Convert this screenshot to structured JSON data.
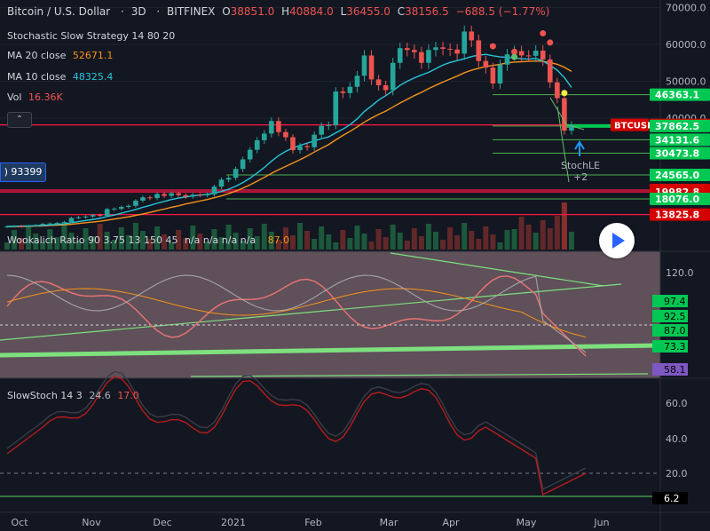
{
  "header": {
    "symbol": "Bitcoin / U.S. Dollar",
    "interval": "3D",
    "exchange": "BITFINEX",
    "o_label": "O",
    "o": "38851.0",
    "h_label": "H",
    "h": "40884.0",
    "l_label": "L",
    "l": "36455.0",
    "c_label": "C",
    "c": "38156.5",
    "change": "−688.5 (−1.77%)"
  },
  "legend": {
    "strategy": "Stochastic Slow Strategy 14 80 20",
    "ma20_label": "MA 20 close",
    "ma20_value": "52671.1",
    "ma10_label": "MA 10 close",
    "ma10_value": "48325.4",
    "vol_label": "Vol",
    "vol_value": "16.36K",
    "collapse_icon": "⌃"
  },
  "stoch_tag": ") 93399",
  "colors": {
    "up": "#26a69a",
    "down": "#ef5350",
    "ma20": "#f7931a",
    "ma10": "#26c6da",
    "green_line": "#4caf50",
    "red_line": "#ff1744",
    "bg": "#131722"
  },
  "wookalich": {
    "title": "Wookalich Ratio 90 3.75 13 150 45",
    "na": "n/a n/a n/a n/a",
    "value": "87.0"
  },
  "slowstoch": {
    "title": "SlowStoch 14 3",
    "k": "24.6",
    "d": "17.0"
  },
  "annotations": {
    "stochle": "StochLE",
    "plus2": "+2"
  },
  "chart_data": [
    {
      "type": "candlestick",
      "title": "Bitcoin / U.S. Dollar 3D BITFINEX",
      "x_labels": [
        "Oct",
        "Nov",
        "Dec",
        "2021",
        "Feb",
        "Mar",
        "Apr",
        "May",
        "Jun"
      ],
      "y_ticks": [
        40000,
        50000,
        60000,
        70000
      ],
      "y_tick_labels": [
        "40000.0",
        "50000.0",
        "60000.0",
        "70000.0"
      ],
      "close": [
        10600,
        10700,
        10550,
        10800,
        11000,
        11300,
        11400,
        11550,
        11800,
        12900,
        13100,
        13300,
        13700,
        13500,
        15300,
        15400,
        15900,
        16200,
        17600,
        18500,
        18300,
        19400,
        18900,
        19600,
        19100,
        18700,
        19200,
        19100,
        19300,
        21400,
        23300,
        23800,
        26200,
        28800,
        31400,
        34000,
        35800,
        39200,
        36200,
        34800,
        31300,
        32400,
        32100,
        35500,
        37900,
        38100,
        47200,
        46800,
        48500,
        51500,
        57000,
        50500,
        48900,
        47600,
        55000,
        59000,
        58500,
        57900,
        55000,
        58500,
        59200,
        58800,
        58600,
        57500,
        63500,
        61100,
        55500,
        53700,
        49400,
        54500,
        57300,
        58200,
        57000,
        56900,
        58300,
        55900,
        49700,
        45400,
        36600,
        38156.5
      ],
      "ma20": [
        10500,
        10550,
        10600,
        10650,
        10700,
        10750,
        10850,
        10950,
        11050,
        11200,
        11400,
        11600,
        11800,
        12000,
        12300,
        12600,
        12900,
        13200,
        13600,
        14000,
        14400,
        14900,
        15300,
        15800,
        16200,
        16700,
        17100,
        17500,
        17900,
        18400,
        18900,
        19500,
        20200,
        21000,
        21900,
        22900,
        23900,
        25000,
        26000,
        26900,
        27800,
        28700,
        29700,
        30800,
        31800,
        32800,
        34100,
        35300,
        36400,
        37600,
        38900,
        40000,
        41000,
        41900,
        43000,
        44100,
        45100,
        46100,
        47000,
        48000,
        48900,
        49800,
        50600,
        51400,
        52300,
        53000,
        53500,
        54000,
        54300,
        54600,
        55000,
        55200,
        55300,
        55400,
        55500,
        55400,
        55100,
        54600,
        53800,
        52671.1
      ],
      "ma10": [
        10600,
        10650,
        10700,
        10750,
        10800,
        10900,
        11000,
        11150,
        11300,
        11600,
        11900,
        12200,
        12500,
        12800,
        13300,
        13700,
        14200,
        14700,
        15200,
        15800,
        16300,
        16900,
        17400,
        17900,
        18300,
        18600,
        18900,
        19100,
        19300,
        19600,
        20100,
        20700,
        21500,
        22500,
        23700,
        25100,
        26600,
        28300,
        29800,
        31000,
        31900,
        32600,
        33200,
        33800,
        34400,
        34900,
        36000,
        37000,
        38200,
        39800,
        41800,
        43300,
        44900,
        46100,
        47400,
        48900,
        50000,
        50900,
        51700,
        52400,
        53400,
        54400,
        55100,
        55600,
        56100,
        56700,
        57100,
        57300,
        56900,
        56600,
        56500,
        56300,
        56100,
        56000,
        56200,
        55500,
        54300,
        53000,
        51000,
        48325.4
      ],
      "horizontal_levels": [
        {
          "value": 46363.1,
          "label": "46363.1",
          "color": "green"
        },
        {
          "value": 38156.5,
          "label": "38156.5",
          "color": "red",
          "tag": "BTCUSD"
        },
        {
          "value": 37862.5,
          "label": "37862.5",
          "color": "green"
        },
        {
          "value": 34131.6,
          "label": "34131.6",
          "color": "green"
        },
        {
          "value": 30473.8,
          "label": "30473.8",
          "color": "green"
        },
        {
          "value": 24565.0,
          "label": "24565.0",
          "color": "green"
        },
        {
          "value": 20488.7,
          "label": "20488.7",
          "color": "red"
        },
        {
          "value": 19982.8,
          "label": "19982.8",
          "color": "red"
        },
        {
          "value": 18076.0,
          "label": "18076.0",
          "color": "green"
        },
        {
          "value": 13825.8,
          "label": "13825.8",
          "color": "red"
        }
      ]
    },
    {
      "type": "line",
      "title": "Wookalich Ratio 90 3.75 13 150 45",
      "y_ticks": [
        120.0
      ],
      "y_tick_labels": [
        "120.0"
      ],
      "levels": [
        {
          "value": 97.4,
          "label": "97.4",
          "color": "green"
        },
        {
          "value": 92.5,
          "label": "92.5",
          "color": "green"
        },
        {
          "value": 87.0,
          "label": "87.0",
          "color": "green"
        },
        {
          "value": 73.3,
          "label": "73.3",
          "color": "green"
        },
        {
          "value": 58.1,
          "label": "58.1",
          "color": "purple"
        }
      ]
    },
    {
      "type": "line",
      "title": "SlowStoch 14 3",
      "y_ticks": [
        20.0,
        40.0,
        60.0
      ],
      "y_tick_labels": [
        "20.0",
        "40.0",
        "60.0"
      ],
      "levels": [
        {
          "value": 6.2,
          "label": "6.2",
          "color": "black"
        }
      ],
      "series": [
        {
          "name": "24.6",
          "last": 24.6
        },
        {
          "name": "17.0",
          "last": 17.0
        }
      ]
    }
  ]
}
